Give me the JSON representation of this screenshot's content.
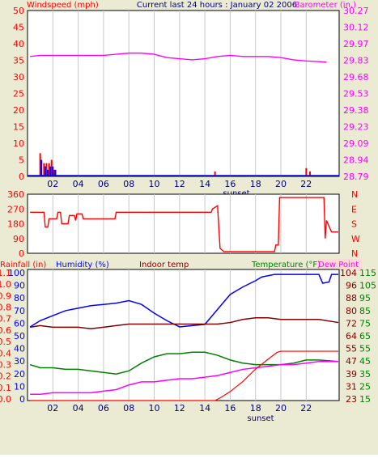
{
  "header": {
    "windspeed_label": "Windspeed (mph)",
    "title": "Current last 24 hours : January 02 2006",
    "barometer_label": "Barometer (in.)"
  },
  "colors": {
    "background": "#ebebd4",
    "plot": "#ffffff",
    "grid": "#c8c8c8",
    "red": "#ff0000",
    "blue": "#0000ff",
    "magenta": "#ff00ff",
    "navy": "#000080",
    "darkred": "#800000",
    "green": "#008000",
    "dewpoint_bg": "#ffd8d8"
  },
  "chart_data": [
    {
      "type": "bar",
      "id": "windspeed-barometer",
      "x_ticks": [
        "02",
        "04",
        "06",
        "08",
        "10",
        "12",
        "14",
        "16",
        "18",
        "20",
        "22"
      ],
      "x_annotation": "sunset",
      "y_left": {
        "label": "Windspeed (mph)",
        "ticks": [
          0,
          5,
          10,
          15,
          20,
          25,
          30,
          35,
          40,
          45,
          50
        ],
        "range": [
          0,
          50
        ]
      },
      "y_right": {
        "label": "Barometer (in.)",
        "ticks": [
          "28.79",
          "28.94",
          "29.09",
          "29.23",
          "29.38",
          "29.53",
          "29.68",
          "29.83",
          "29.97",
          "30.12",
          "30.27"
        ],
        "range": [
          28.79,
          30.27
        ]
      },
      "gust_bars": [
        {
          "x": 1.0,
          "value": 7
        },
        {
          "x": 1.3,
          "value": 4
        },
        {
          "x": 1.5,
          "value": 4
        },
        {
          "x": 1.7,
          "value": 4
        },
        {
          "x": 1.9,
          "value": 5
        },
        {
          "x": 2.1,
          "value": 2
        },
        {
          "x": 14.8,
          "value": 1.5
        },
        {
          "x": 22.0,
          "value": 2.5
        },
        {
          "x": 22.3,
          "value": 1.5
        }
      ],
      "speed_bars": [
        {
          "x": 1.1,
          "value": 5
        },
        {
          "x": 1.4,
          "value": 3
        },
        {
          "x": 1.6,
          "value": 2
        },
        {
          "x": 1.8,
          "value": 3
        },
        {
          "x": 2.0,
          "value": 3
        },
        {
          "x": 2.2,
          "value": 2
        }
      ],
      "barometer": [
        [
          0.2,
          29.86
        ],
        [
          1,
          29.87
        ],
        [
          2,
          29.87
        ],
        [
          3,
          29.87
        ],
        [
          4,
          29.87
        ],
        [
          5,
          29.87
        ],
        [
          6,
          29.87
        ],
        [
          7,
          29.88
        ],
        [
          8,
          29.89
        ],
        [
          9,
          29.89
        ],
        [
          10,
          29.88
        ],
        [
          11,
          29.85
        ],
        [
          12,
          29.84
        ],
        [
          13,
          29.83
        ],
        [
          14,
          29.84
        ],
        [
          15,
          29.86
        ],
        [
          16,
          29.87
        ],
        [
          17,
          29.86
        ],
        [
          18,
          29.86
        ],
        [
          19,
          29.86
        ],
        [
          20,
          29.85
        ],
        [
          21,
          29.83
        ],
        [
          22,
          29.82
        ],
        [
          23.6,
          29.81
        ]
      ]
    },
    {
      "type": "line",
      "id": "wind-direction",
      "y_left_ticks": [
        0,
        90,
        180,
        270,
        360
      ],
      "y_right_ticks": [
        "N",
        "W",
        "S",
        "E",
        "N"
      ],
      "range": [
        0,
        360
      ],
      "direction": [
        [
          0.2,
          250
        ],
        [
          1.3,
          250
        ],
        [
          1.4,
          160
        ],
        [
          1.6,
          160
        ],
        [
          1.7,
          210
        ],
        [
          2.3,
          210
        ],
        [
          2.4,
          250
        ],
        [
          2.6,
          250
        ],
        [
          2.7,
          180
        ],
        [
          3.2,
          180
        ],
        [
          3.3,
          230
        ],
        [
          3.7,
          230
        ],
        [
          3.8,
          200
        ],
        [
          3.9,
          240
        ],
        [
          4.3,
          240
        ],
        [
          4.4,
          210
        ],
        [
          6.9,
          210
        ],
        [
          7.0,
          250
        ],
        [
          14.5,
          250
        ],
        [
          14.6,
          270
        ],
        [
          15.0,
          290
        ],
        [
          15.2,
          30
        ],
        [
          15.5,
          10
        ],
        [
          19.5,
          10
        ],
        [
          19.6,
          50
        ],
        [
          19.8,
          50
        ],
        [
          19.9,
          340
        ],
        [
          23.4,
          340
        ],
        [
          23.5,
          90
        ],
        [
          23.6,
          200
        ],
        [
          24.0,
          130
        ],
        [
          25.3,
          130
        ]
      ]
    },
    {
      "type": "line",
      "id": "weather-multi",
      "labels": [
        "Rainfall (in)",
        "Humidity (%)",
        "Indoor temp",
        "Temperature (°F)",
        "Dew Point"
      ],
      "x_ticks": [
        "02",
        "04",
        "06",
        "08",
        "10",
        "12",
        "14",
        "16",
        "18",
        "20",
        "22"
      ],
      "x_annotation": "sunset",
      "axes": {
        "rainfall": [
          "0.0",
          "0.1",
          "0.2",
          "0.3",
          "0.4",
          "0.5",
          "0.6",
          "0.7",
          "0.8",
          "0.9",
          "1.0",
          "1.1"
        ],
        "humidity": [
          0,
          10,
          20,
          30,
          40,
          50,
          60,
          70,
          80,
          90,
          100
        ],
        "indoor_temp": [
          23,
          31,
          39,
          47,
          55,
          64,
          72,
          80,
          88,
          96,
          104
        ],
        "temperature": [
          15,
          25,
          35,
          45,
          55,
          65,
          75,
          85,
          95,
          105,
          115
        ]
      },
      "series": [
        {
          "name": "Humidity (%)",
          "unit": "%",
          "color": "#0000ff",
          "points": [
            [
              0.2,
              59
            ],
            [
              1,
              64
            ],
            [
              2,
              68
            ],
            [
              3,
              72
            ],
            [
              4,
              74
            ],
            [
              5,
              76
            ],
            [
              6,
              77
            ],
            [
              7,
              78
            ],
            [
              8,
              80
            ],
            [
              9,
              77
            ],
            [
              10,
              70
            ],
            [
              11,
              64
            ],
            [
              12,
              59
            ],
            [
              13,
              60
            ],
            [
              14,
              61
            ],
            [
              15,
              73
            ],
            [
              16,
              85
            ],
            [
              17,
              91
            ],
            [
              18,
              96
            ],
            [
              18.5,
              99
            ],
            [
              19.5,
              101
            ],
            [
              21,
              101
            ],
            [
              23.0,
              101
            ],
            [
              23.3,
              94
            ],
            [
              23.8,
              95
            ],
            [
              24,
              101
            ],
            [
              24.6,
              101
            ]
          ]
        },
        {
          "name": "Indoor temp",
          "unit": "°F",
          "color": "#800000",
          "points": [
            [
              0.2,
              70
            ],
            [
              1,
              71
            ],
            [
              2,
              70
            ],
            [
              3,
              70
            ],
            [
              4,
              70
            ],
            [
              5,
              69
            ],
            [
              6,
              70
            ],
            [
              7,
              71
            ],
            [
              8,
              72
            ],
            [
              9,
              72
            ],
            [
              10,
              72
            ],
            [
              11,
              72
            ],
            [
              12,
              72
            ],
            [
              13,
              72
            ],
            [
              14,
              72
            ],
            [
              15,
              72
            ],
            [
              16,
              73
            ],
            [
              17,
              75
            ],
            [
              18,
              76
            ],
            [
              19,
              76
            ],
            [
              20,
              75
            ],
            [
              21,
              75
            ],
            [
              22,
              75
            ],
            [
              23,
              75
            ],
            [
              24.6,
              73
            ]
          ]
        },
        {
          "name": "Temperature (°F)",
          "unit": "°F",
          "color": "#008000",
          "points": [
            [
              0.2,
              46
            ],
            [
              1,
              44
            ],
            [
              2,
              44
            ],
            [
              3,
              43
            ],
            [
              4,
              43
            ],
            [
              5,
              42
            ],
            [
              6,
              41
            ],
            [
              7,
              40
            ],
            [
              8,
              42
            ],
            [
              9,
              47
            ],
            [
              10,
              51
            ],
            [
              11,
              53
            ],
            [
              12,
              53
            ],
            [
              13,
              54
            ],
            [
              14,
              54
            ],
            [
              15,
              52
            ],
            [
              16,
              49
            ],
            [
              17,
              47
            ],
            [
              18,
              46
            ],
            [
              19,
              46
            ],
            [
              20,
              46
            ],
            [
              21,
              47
            ],
            [
              22,
              49
            ],
            [
              23,
              49
            ],
            [
              24.6,
              48
            ]
          ]
        },
        {
          "name": "Dew Point",
          "unit": "°F",
          "color": "#ff00ff",
          "points": [
            [
              0.2,
              27
            ],
            [
              1,
              27
            ],
            [
              2,
              28
            ],
            [
              3,
              28
            ],
            [
              4,
              28
            ],
            [
              5,
              28
            ],
            [
              6,
              29
            ],
            [
              7,
              30
            ],
            [
              8,
              33
            ],
            [
              9,
              35
            ],
            [
              10,
              35
            ],
            [
              11,
              36
            ],
            [
              12,
              37
            ],
            [
              13,
              37
            ],
            [
              14,
              38
            ],
            [
              15,
              39
            ],
            [
              16,
              41
            ],
            [
              17,
              43
            ],
            [
              18,
              44
            ],
            [
              19,
              45
            ],
            [
              20,
              46
            ],
            [
              21,
              46
            ],
            [
              22,
              47
            ],
            [
              23,
              48
            ],
            [
              24.6,
              48
            ]
          ]
        },
        {
          "name": "Rainfall (in)",
          "unit": "in",
          "color": "#ff0000",
          "points": [
            [
              0.2,
              0.0
            ],
            [
              14.8,
              0.0
            ],
            [
              15.3,
              0.03
            ],
            [
              16,
              0.08
            ],
            [
              17,
              0.17
            ],
            [
              18,
              0.28
            ],
            [
              19,
              0.37
            ],
            [
              19.7,
              0.43
            ],
            [
              20,
              0.44
            ],
            [
              24.6,
              0.44
            ]
          ]
        }
      ]
    }
  ]
}
